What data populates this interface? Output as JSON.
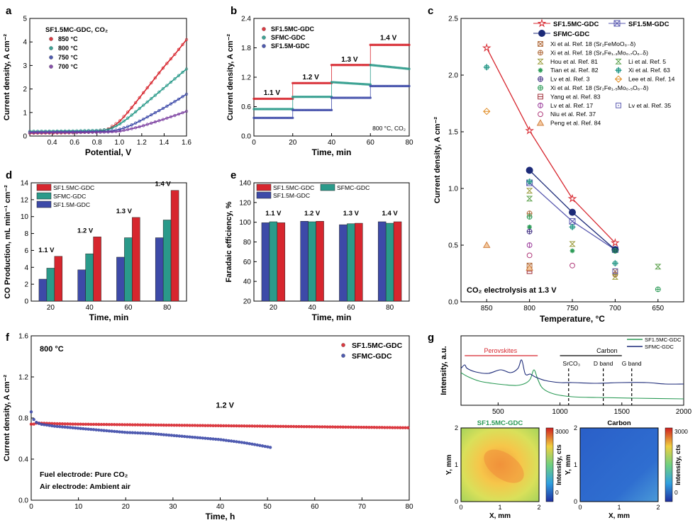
{
  "colors": {
    "red": "#d7262e",
    "teal": "#2a9a8a",
    "blue": "#3d4aa8",
    "purple": "#7b3fa0",
    "navy": "#1c2a78",
    "green": "#2a9a55",
    "brown": "#b06a3a",
    "gray": "#8e8e8e",
    "orange": "#e08a20"
  },
  "chart_data": [
    {
      "id": "a",
      "panel_label": "a",
      "type": "line",
      "title": "SF1.5MC-GDC, CO₂",
      "xlabel": "Potential, V",
      "ylabel": "Current density, A cm⁻²",
      "xlim": [
        0.2,
        1.6
      ],
      "ylim": [
        0,
        5
      ],
      "xticks": [
        "0.4",
        "0.6",
        "0.8",
        "1.0",
        "1.2",
        "1.4",
        "1.6"
      ],
      "yticks": [
        "0",
        "1",
        "2",
        "3",
        "4",
        "5"
      ],
      "series": [
        {
          "name": "850 °C",
          "color": "#d7262e",
          "x": [
            0.2,
            0.4,
            0.6,
            0.8,
            0.9,
            1.0,
            1.1,
            1.2,
            1.3,
            1.4,
            1.5,
            1.6
          ],
          "y": [
            0.12,
            0.13,
            0.14,
            0.18,
            0.3,
            0.62,
            1.15,
            1.75,
            2.35,
            2.95,
            3.5,
            4.1
          ]
        },
        {
          "name": "800 °C",
          "color": "#2a9a8a",
          "x": [
            0.2,
            0.4,
            0.6,
            0.8,
            0.9,
            1.0,
            1.1,
            1.2,
            1.3,
            1.4,
            1.5,
            1.6
          ],
          "y": [
            0.2,
            0.21,
            0.22,
            0.24,
            0.28,
            0.5,
            0.85,
            1.25,
            1.65,
            2.05,
            2.45,
            2.85
          ]
        },
        {
          "name": "750 °C",
          "color": "#3d4aa8",
          "x": [
            0.2,
            0.4,
            0.6,
            0.8,
            0.9,
            1.0,
            1.1,
            1.2,
            1.3,
            1.4,
            1.5,
            1.6
          ],
          "y": [
            0.16,
            0.17,
            0.18,
            0.19,
            0.2,
            0.28,
            0.45,
            0.68,
            0.94,
            1.2,
            1.48,
            1.78
          ]
        },
        {
          "name": "700 °C",
          "color": "#7b3fa0",
          "x": [
            0.2,
            0.4,
            0.6,
            0.8,
            0.9,
            1.0,
            1.1,
            1.2,
            1.3,
            1.4,
            1.5,
            1.6
          ],
          "y": [
            0.14,
            0.15,
            0.15,
            0.16,
            0.17,
            0.2,
            0.3,
            0.42,
            0.57,
            0.72,
            0.88,
            1.05
          ]
        }
      ]
    },
    {
      "id": "b",
      "panel_label": "b",
      "type": "line",
      "xlabel": "Time, min",
      "ylabel": "Current density, A cm⁻²",
      "xlim": [
        0,
        80
      ],
      "ylim": [
        0,
        2.4
      ],
      "xticks": [
        "0",
        "20",
        "40",
        "60",
        "80"
      ],
      "yticks": [
        "0.0",
        "0.6",
        "1.2",
        "1.8",
        "2.4"
      ],
      "note": "800 °C, CO₂",
      "step_labels": [
        {
          "text": "1.1 V",
          "x": 5,
          "y": 0.84
        },
        {
          "text": "1.2 V",
          "x": 25,
          "y": 1.16
        },
        {
          "text": "1.3 V",
          "x": 45,
          "y": 1.52
        },
        {
          "text": "1.4 V",
          "x": 65,
          "y": 1.96
        }
      ],
      "series": [
        {
          "name": "SF1.5MC-GDC",
          "color": "#d7262e",
          "segments": [
            [
              0,
              20,
              0.76
            ],
            [
              20,
              40,
              1.08
            ],
            [
              40,
              60,
              1.45
            ],
            [
              60,
              80,
              1.86
            ]
          ]
        },
        {
          "name": "SFMC-GDC",
          "color": "#2a9a8a",
          "segments": [
            [
              0,
              20,
              0.55
            ],
            [
              20,
              40,
              0.8
            ],
            [
              40,
              60,
              1.1,
              1.05
            ],
            [
              60,
              80,
              1.45,
              1.37
            ]
          ]
        },
        {
          "name": "SF1.5M-GDC",
          "color": "#3d4aa8",
          "segments": [
            [
              0,
              20,
              0.37
            ],
            [
              20,
              40,
              0.53
            ],
            [
              40,
              60,
              0.78
            ],
            [
              60,
              80,
              1.02
            ]
          ]
        }
      ]
    },
    {
      "id": "c",
      "panel_label": "c",
      "type": "scatter",
      "xlabel": "Temperature, °C",
      "ylabel": "Current density, A cm⁻²",
      "xlim": [
        880,
        620
      ],
      "ylim": [
        0,
        2.5
      ],
      "xticks": [
        "850",
        "800",
        "750",
        "700",
        "650"
      ],
      "yticks": [
        "0.0",
        "0.5",
        "1.0",
        "1.5",
        "2.0",
        "2.5"
      ],
      "note": "CO₂ electrolysis at 1.3 V",
      "lines": [
        {
          "name": "SF1.5MC-GDC",
          "color": "#d7262e",
          "marker": "star",
          "x": [
            850,
            800,
            750,
            700
          ],
          "y": [
            2.24,
            1.51,
            0.91,
            0.52
          ]
        },
        {
          "name": "SF1.5M-GDC",
          "color": "#5a5ab0",
          "marker": "xsquare",
          "x": [
            800,
            750,
            700
          ],
          "y": [
            1.05,
            0.71,
            0.46
          ]
        },
        {
          "name": "SFMC-GDC",
          "color": "#1c2a78",
          "marker": "filledcircle",
          "x": [
            800,
            750,
            700
          ],
          "y": [
            1.16,
            0.79,
            0.46
          ]
        }
      ],
      "references": [
        {
          "label": "Xi et al. Ref. 18 (Sr₂FeMoO₆₋δ)",
          "color": "#b06a3a",
          "marker": "xsquare",
          "x": [
            800,
            700
          ],
          "y": [
            0.32,
            0.27
          ]
        },
        {
          "label": "Xi et al. Ref. 18 (Sr₂Fe₁.₃Mo₀.₇O₆₋δ)",
          "color": "#b06a3a",
          "marker": "pluscircle",
          "x": [
            800,
            700
          ],
          "y": [
            0.78,
            0.24
          ]
        },
        {
          "label": "Hou et al. Ref. 81",
          "color": "#9a9a3a",
          "marker": "hourglass",
          "x": [
            800,
            750,
            700
          ],
          "y": [
            0.98,
            0.51,
            0.22
          ]
        },
        {
          "label": "Li et al. Ref. 5",
          "color": "#5aa04a",
          "marker": "hourglass",
          "x": [
            800,
            650
          ],
          "y": [
            0.91,
            0.31
          ]
        },
        {
          "label": "Tian et al. Ref. 82",
          "color": "#2a9a55",
          "marker": "asterisk",
          "x": [
            800,
            750
          ],
          "y": [
            0.66,
            0.45
          ]
        },
        {
          "label": "Xi et al. Ref. 63",
          "color": "#2a9a8a",
          "marker": "plussquare",
          "x": [
            850,
            800,
            750,
            700
          ],
          "y": [
            2.07,
            1.06,
            0.66,
            0.34
          ]
        },
        {
          "label": "Lv et al. Ref. 3",
          "color": "#3d2a80",
          "marker": "pluscircle",
          "x": [
            800
          ],
          "y": [
            0.62
          ]
        },
        {
          "label": "Lee et al. Ref. 14",
          "color": "#e08a20",
          "marker": "diamond",
          "x": [
            850
          ],
          "y": [
            1.68
          ]
        },
        {
          "label": "Xi et al. Ref. 18 (Sr₂Fe₁.₅Mo₀.₅O₆₋δ)",
          "color": "#2a9a55",
          "marker": "pluscircle",
          "x": [
            800,
            700,
            650
          ],
          "y": [
            0.75,
            0.45,
            0.11
          ]
        },
        {
          "label": "Yang et al. Ref. 83",
          "color": "#a0303a",
          "marker": "minussquare",
          "x": [
            800
          ],
          "y": [
            0.27
          ]
        },
        {
          "label": "Lv et al. Ref. 17",
          "color": "#9a3a9a",
          "marker": "bar-circle",
          "x": [
            800
          ],
          "y": [
            0.5
          ]
        },
        {
          "label": "Lv et al. Ref. 35",
          "color": "#5a5ab0",
          "marker": "dotsquare",
          "x": [
            700
          ],
          "y": [
            0.27
          ]
        },
        {
          "label": "Niu et al. Ref. 37",
          "color": "#b03a7a",
          "marker": "circle",
          "x": [
            800,
            750
          ],
          "y": [
            0.41,
            0.32
          ]
        },
        {
          "label": "Peng et al. Ref. 84",
          "color": "#d08040",
          "marker": "triangle",
          "x": [
            850,
            800
          ],
          "y": [
            0.5,
            0.3
          ]
        }
      ]
    },
    {
      "id": "d",
      "panel_label": "d",
      "type": "bar",
      "xlabel": "Time, min",
      "ylabel": "CO Production, mL min⁻¹ cm⁻²",
      "categories": [
        "20",
        "40",
        "60",
        "80"
      ],
      "ylim": [
        0,
        14
      ],
      "yticks": [
        "0",
        "2",
        "4",
        "6",
        "8",
        "10",
        "12",
        "14"
      ],
      "bar_labels": [
        "1.1 V",
        "1.2 V",
        "1.3 V",
        "1.4 V"
      ],
      "series": [
        {
          "name": "SF1.5M-GDC",
          "color": "#3d4aa8",
          "values": [
            2.6,
            3.7,
            5.2,
            7.5
          ]
        },
        {
          "name": "SFMC-GDC",
          "color": "#2a9a8a",
          "values": [
            3.9,
            5.6,
            7.5,
            9.6
          ]
        },
        {
          "name": "SF1.5MC-GDC",
          "color": "#d7262e",
          "values": [
            5.3,
            7.6,
            9.9,
            13.1
          ]
        }
      ]
    },
    {
      "id": "e",
      "panel_label": "e",
      "type": "bar",
      "xlabel": "Time, min",
      "ylabel": "Faradaic efficiency, %",
      "categories": [
        "20",
        "40",
        "60",
        "80"
      ],
      "ylim": [
        20,
        140
      ],
      "yticks": [
        "20",
        "40",
        "60",
        "80",
        "100",
        "120",
        "140"
      ],
      "bar_labels": [
        "1.1 V",
        "1.2 V",
        "1.3 V",
        "1.4 V"
      ],
      "series": [
        {
          "name": "SF1.5M-GDC",
          "color": "#3d4aa8",
          "values": [
            99.5,
            101,
            97.5,
            100.5
          ]
        },
        {
          "name": "SFMC-GDC",
          "color": "#2a9a8a",
          "values": [
            100.5,
            100.5,
            98.5,
            99
          ]
        },
        {
          "name": "SF1.5MC-GDC",
          "color": "#d7262e",
          "values": [
            99.5,
            101,
            99,
            100.5
          ]
        }
      ]
    },
    {
      "id": "f",
      "panel_label": "f",
      "type": "line",
      "xlabel": "Time, h",
      "ylabel": "Current density, A cm⁻²",
      "xlim": [
        0,
        80
      ],
      "ylim": [
        0,
        1.6
      ],
      "xticks": [
        "0",
        "10",
        "20",
        "30",
        "40",
        "50",
        "60",
        "70",
        "80"
      ],
      "yticks": [
        "0.0",
        "0.4",
        "0.8",
        "1.2",
        "1.6"
      ],
      "note_temp": "800 °C",
      "note_voltage": "1.2 V",
      "note_fuel": "Fuel electrode: Pure CO₂",
      "note_air": "Air electrode: Ambient air",
      "series": [
        {
          "name": "SF1.5MC-GDC",
          "color": "#d7262e",
          "x": [
            0,
            0.5,
            1,
            2,
            5,
            10,
            20,
            30,
            40,
            50,
            60,
            70,
            80
          ],
          "y": [
            0.74,
            0.74,
            0.75,
            0.75,
            0.745,
            0.74,
            0.735,
            0.73,
            0.725,
            0.72,
            0.715,
            0.71,
            0.705
          ]
        },
        {
          "name": "SFMC-GDC",
          "color": "#3d4aa8",
          "x": [
            0,
            0.3,
            1,
            2,
            5,
            10,
            15,
            20,
            25,
            30,
            35,
            40,
            45,
            50,
            51
          ],
          "y": [
            0.86,
            0.8,
            0.76,
            0.74,
            0.72,
            0.7,
            0.68,
            0.66,
            0.65,
            0.63,
            0.61,
            0.59,
            0.56,
            0.52,
            0.51
          ]
        }
      ]
    },
    {
      "id": "g",
      "panel_label": "g",
      "type": "line",
      "xlabel": "",
      "ylabel": "Intensity, a.u.",
      "xlim": [
        200,
        2000
      ],
      "xticks": [
        "500",
        "1000",
        "1500",
        "2000"
      ],
      "region_perovskites": "Perovskites",
      "region_carbon": "Carbon",
      "markers": [
        "SrCO₃",
        "D band",
        "G band"
      ],
      "series": [
        {
          "name": "SF1.5MC-GDC",
          "color": "#2a9a55"
        },
        {
          "name": "SFMC-GDC",
          "color": "#1c2a78"
        }
      ],
      "maps": [
        {
          "title": "SF1.5MC-GDC",
          "xlabel": "X, mm",
          "ylabel": "Y, mm",
          "cbar_label": "Intensity, cts",
          "cbar_ticks": [
            "0",
            "3000"
          ],
          "xticks": [
            "0",
            "1",
            "2"
          ],
          "yticks": [
            "0",
            "1",
            "2"
          ]
        },
        {
          "title": "Carbon",
          "xlabel": "X, mm",
          "ylabel": "Y, mm",
          "cbar_label": "Intensity, cts",
          "cbar_ticks": [
            "0",
            "3000"
          ],
          "xticks": [
            "0",
            "1",
            "2"
          ],
          "yticks": [
            "0",
            "1",
            "2"
          ]
        }
      ]
    }
  ]
}
